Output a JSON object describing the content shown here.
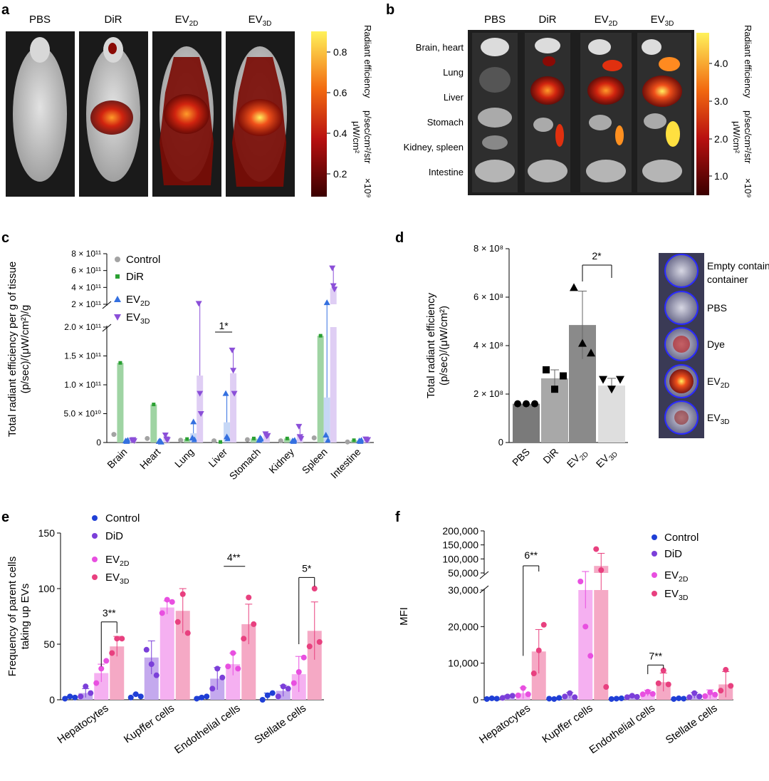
{
  "panels": {
    "a": "a",
    "b": "b",
    "c": "c",
    "d": "d",
    "e": "e",
    "f": "f"
  },
  "panel_a": {
    "groups": [
      "PBS",
      "DiR",
      "EV2D",
      "EV3D"
    ],
    "colorbar_ticks": [
      "0.8",
      "0.6",
      "0.4",
      "0.2"
    ],
    "colorbar_title": "Radiant efficiency",
    "colorbar_unit_num": "p/sec/cm²/str",
    "colorbar_unit_den": "μW/cm²",
    "colorbar_scale": "×10⁹"
  },
  "panel_b": {
    "groups": [
      "PBS",
      "DiR",
      "EV2D",
      "EV3D"
    ],
    "organs": [
      "Brain, heart",
      "Lung",
      "Liver",
      "Stomach",
      "Kidney, spleen",
      "Intestine"
    ],
    "colorbar_ticks": [
      "4.0",
      "3.0",
      "2.0",
      "1.0"
    ],
    "colorbar_title": "Radiant efficiency",
    "colorbar_unit_num": "p/sec/cm²/str",
    "colorbar_unit_den": "μW/cm²",
    "colorbar_scale": "×10⁹"
  },
  "panel_d_image": {
    "labels": [
      "Empty container",
      "PBS",
      "Dye",
      "EV2D",
      "EV3D"
    ]
  },
  "chart_data": [
    {
      "id": "c",
      "type": "bar",
      "ylabel": "Total radiant efficiency per g of tissue (p/sec)/(μW/cm²)/g",
      "categories": [
        "Brain",
        "Heart",
        "Lung",
        "Liver",
        "Stomach",
        "Kidney",
        "Spleen",
        "Intestine"
      ],
      "axis_break": true,
      "ylim_lower": [
        0,
        200000000000.0
      ],
      "ylim_upper": [
        200000000000.0,
        800000000000.0
      ],
      "ticks_lower": [
        "0",
        "5.0 × 10¹⁰",
        "1.0 × 10¹¹",
        "1.5 × 10¹¹",
        "2.0 × 10¹¹"
      ],
      "ticks_upper": [
        "2 × 10¹¹",
        "4 × 10¹¹",
        "6 × 10¹¹",
        "8 × 10¹¹"
      ],
      "series": [
        {
          "name": "Control",
          "color": "#a3a3a3",
          "means": [
            14000000000.0,
            7000000000.0,
            4000000000.0,
            3000000000.0,
            5000000000.0,
            3000000000.0,
            8000000000.0,
            1000000000.0
          ],
          "points": [
            [
              14000000000.0
            ],
            [
              7000000000.0
            ],
            [
              4000000000.0
            ],
            [
              3000000000.0
            ],
            [
              5000000000.0
            ],
            [
              3000000000.0
            ],
            [
              8000000000.0
            ],
            [
              1000000000.0
            ]
          ]
        },
        {
          "name": "DiR",
          "color": "#2aa032",
          "means": [
            138000000000.0,
            66000000000.0,
            6000000000.0,
            1000000000.0,
            7000000000.0,
            7000000000.0,
            185000000000.0,
            4000000000.0
          ],
          "points": [
            [
              138000000000.0
            ],
            [
              66000000000.0
            ],
            [
              6000000000.0
            ],
            [
              1000000000.0
            ],
            [
              7000000000.0
            ],
            [
              7000000000.0
            ],
            [
              185000000000.0
            ],
            [
              4000000000.0
            ]
          ]
        },
        {
          "name": "EV2D",
          "color": "#3470e0",
          "means": [
            3000000000.0,
            2000000000.0,
            16000000000.0,
            35000000000.0,
            6000000000.0,
            3000000000.0,
            78000000000.0,
            3000000000.0
          ],
          "points": [
            [
              3000000000.0,
              2000000000.0,
              4000000000.0
            ],
            [
              2000000000.0,
              3000000000.0,
              1000000000.0
            ],
            [
              8000000000.0,
              36000000000.0,
              5000000000.0
            ],
            [
              85000000000.0,
              10000000000.0,
              7000000000.0
            ],
            [
              4000000000.0,
              8000000000.0,
              6000000000.0
            ],
            [
              3000000000.0,
              2000000000.0,
              4000000000.0
            ],
            [
              13000000000.0,
              220000000000.0,
              4000000000.0
            ],
            [
              3000000000.0,
              2000000000.0,
              4000000000.0
            ]
          ]
        },
        {
          "name": "EV3D",
          "color": "#8b4fd8",
          "means": [
            4000000000.0,
            8000000000.0,
            116000000000.0,
            120000000000.0,
            13000000000.0,
            15000000000.0,
            390000000000.0,
            5000000000.0
          ],
          "points": [
            [
              4000000000.0,
              5000000000.0,
              3000000000.0
            ],
            [
              13000000000.0,
              6000000000.0,
              5000000000.0
            ],
            [
              210000000000.0,
              85000000000.0,
              50000000000.0
            ],
            [
              160000000000.0,
              125000000000.0,
              85000000000.0
            ],
            [
              15000000000.0,
              11000000000.0,
              12000000000.0
            ],
            [
              28000000000.0,
              10000000000.0,
              7000000000.0
            ],
            [
              630000000000.0,
              420000000000.0,
              380000000000.0
            ],
            [
              6000000000.0,
              4000000000.0,
              5000000000.0
            ]
          ]
        }
      ],
      "annotations": [
        {
          "text": "1*",
          "between": "Liver"
        }
      ]
    },
    {
      "id": "d",
      "type": "bar",
      "ylabel": "Total radiant efficiency (p/sec)/(μW/cm²)",
      "categories": [
        "PBS",
        "DiR",
        "EV2D",
        "EV3D"
      ],
      "ylim": [
        0,
        800000000.0
      ],
      "ticks": [
        "0",
        "2 × 10⁸",
        "4 × 10⁸",
        "6 × 10⁸",
        "8 × 10⁸"
      ],
      "means": [
        160000000.0,
        265000000.0,
        485000000.0,
        235000000.0
      ],
      "errors": [
        0,
        35000000.0,
        140000000.0,
        30000000.0
      ],
      "points": [
        [
          160000000.0,
          160000000.0,
          160000000.0
        ],
        [
          300000000.0,
          220000000.0,
          275000000.0
        ],
        [
          640000000.0,
          410000000.0,
          370000000.0
        ],
        [
          260000000.0,
          220000000.0,
          260000000.0
        ]
      ],
      "markers": [
        "circle",
        "square",
        "triangle-up",
        "triangle-down"
      ],
      "bar_colors": [
        "#7a7a7a",
        "#a8a8a8",
        "#8a8a8a",
        "#dedede"
      ],
      "annotations": [
        {
          "text": "2*",
          "from": "EV2D",
          "to": "EV3D"
        }
      ]
    },
    {
      "id": "e",
      "type": "bar",
      "ylabel": "Frequency of parent cells taking up EVs",
      "categories": [
        "Hepatocytes",
        "Kupffer cells",
        "Endothelial cells",
        "Stellate cells"
      ],
      "ylim": [
        0,
        150
      ],
      "ticks": [
        "0",
        "50",
        "100",
        "150"
      ],
      "series": [
        {
          "name": "Control",
          "color": "#1f3fd6",
          "means": [
            2,
            4,
            2,
            3
          ],
          "errors": [
            1,
            1,
            1,
            3
          ],
          "points": [
            [
              1,
              3,
              2
            ],
            [
              2,
              5,
              3
            ],
            [
              1,
              2,
              3
            ],
            [
              0,
              4,
              6
            ]
          ]
        },
        {
          "name": "DiD",
          "color": "#7b3fd9",
          "means": [
            6,
            38,
            19,
            8
          ],
          "errors": [
            4,
            15,
            10,
            5
          ],
          "points": [
            [
              3,
              12,
              6
            ],
            [
              45,
              32,
              22
            ],
            [
              10,
              28,
              20
            ],
            [
              3,
              12,
              10
            ]
          ]
        },
        {
          "name": "EV2D",
          "color": "#e84fe0",
          "means": [
            24,
            83,
            32,
            23
          ],
          "errors": [
            8,
            6,
            10,
            16
          ],
          "points": [
            [
              15,
              28,
              35
            ],
            [
              78,
              90,
              88
            ],
            [
              30,
              42,
              28
            ],
            [
              15,
              25,
              38
            ]
          ]
        },
        {
          "name": "EV3D",
          "color": "#e8407f",
          "means": [
            48,
            80,
            68,
            62
          ],
          "errors": [
            9,
            20,
            18,
            26
          ],
          "points": [
            [
              42,
              55,
              55
            ],
            [
              70,
              95,
              60
            ],
            [
              55,
              92,
              68
            ],
            [
              48,
              100,
              52
            ]
          ]
        }
      ],
      "annotations": [
        {
          "text": "3**",
          "group": "Hepatocytes"
        },
        {
          "text": "4**",
          "group": "Endothelial cells"
        },
        {
          "text": "5*",
          "group": "Stellate cells"
        }
      ]
    },
    {
      "id": "f",
      "type": "bar",
      "ylabel": "MFI",
      "categories": [
        "Hepatocytes",
        "Kupffer cells",
        "Endothelial cells",
        "Stellate cells"
      ],
      "axis_break": true,
      "ylim_lower": [
        0,
        30000
      ],
      "ylim_upper": [
        50000,
        200000
      ],
      "ticks_lower": [
        "0",
        "10,000",
        "20,000",
        "30,000"
      ],
      "ticks_upper": [
        "50,000",
        "100,000",
        "150,000",
        "200,000"
      ],
      "series": [
        {
          "name": "Control",
          "color": "#1f3fd6",
          "means": [
            300,
            300,
            300,
            300
          ],
          "errors": [
            200,
            200,
            200,
            200
          ],
          "points": [
            [
              200,
              400,
              300
            ],
            [
              300,
              200,
              500
            ],
            [
              200,
              300,
              400
            ],
            [
              200,
              400,
              300
            ]
          ]
        },
        {
          "name": "DiD",
          "color": "#7b3fd9",
          "means": [
            800,
            1200,
            900,
            1200
          ],
          "errors": [
            400,
            800,
            400,
            800
          ],
          "points": [
            [
              500,
              900,
              1100
            ],
            [
              900,
              1800,
              700
            ],
            [
              700,
              1100,
              800
            ],
            [
              700,
              1800,
              900
            ]
          ]
        },
        {
          "name": "EV2D",
          "color": "#e84fe0",
          "means": [
            1800,
            40000,
            1800,
            1500
          ],
          "errors": [
            1500,
            15000,
            800,
            1200
          ],
          "points": [
            [
              1200,
              3200,
              1500
            ],
            [
              40000,
              20000,
              12000
            ],
            [
              1500,
              2200,
              1600
            ],
            [
              1000,
              2000,
              1400
            ]
          ]
        },
        {
          "name": "EV3D",
          "color": "#e8407f",
          "means": [
            13200,
            75000,
            4800,
            4200
          ],
          "errors": [
            6000,
            45000,
            2500,
            3500
          ],
          "points": [
            [
              7200,
              13500,
              20500
            ],
            [
              135000,
              60000,
              3500
            ],
            [
              4500,
              8000,
              4200
            ],
            [
              2500,
              8200,
              3800
            ]
          ]
        }
      ],
      "annotations": [
        {
          "text": "6**",
          "group": "Hepatocytes"
        },
        {
          "text": "7**",
          "group": "Endothelial cells"
        }
      ]
    }
  ]
}
